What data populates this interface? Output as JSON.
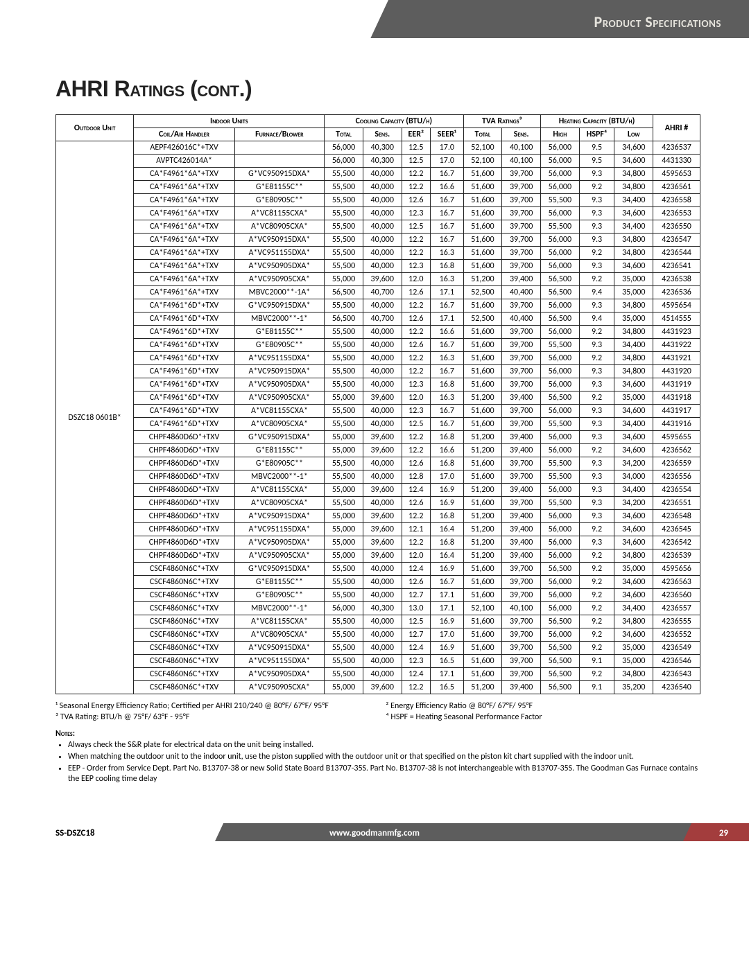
{
  "header": {
    "title": "Product Specifications"
  },
  "heading": "AHRI Ratings (cont.)",
  "columns": {
    "outdoor_unit": "Outdoor Unit",
    "indoor_units": "Indoor Units",
    "coil": "Coil/Air Handler",
    "furnace": "Furnace/Blower",
    "cooling": "Cooling Capacity (BTU/h)",
    "total": "Total",
    "sens": "Sens.",
    "eer": "EER²",
    "seer": "SEER¹",
    "tva": "TVA Ratings³",
    "heating": "Heating Capacity (BTU/h)",
    "high": "High",
    "hspf": "HSPF⁴",
    "low": "Low",
    "ahri": "AHRI #"
  },
  "outdoor_unit": "DSZC18 0601B*",
  "rows": [
    {
      "coil": "AEPF426016C*+TXV",
      "furnace": "",
      "ct": "56,000",
      "cs": "40,300",
      "eer": "12.5",
      "seer": "17.0",
      "tt": "52,100",
      "ts": "40,100",
      "hh": "56,000",
      "hspf": "9.5",
      "hl": "34,600",
      "ahri": "4236537"
    },
    {
      "coil": "AVPTC426014A*",
      "furnace": "",
      "ct": "56,000",
      "cs": "40,300",
      "eer": "12.5",
      "seer": "17.0",
      "tt": "52,100",
      "ts": "40,100",
      "hh": "56,000",
      "hspf": "9.5",
      "hl": "34,600",
      "ahri": "4431330"
    },
    {
      "coil": "CA*F4961*6A*+TXV",
      "furnace": "G*VC950915DXA*",
      "ct": "55,500",
      "cs": "40,000",
      "eer": "12.2",
      "seer": "16.7",
      "tt": "51,600",
      "ts": "39,700",
      "hh": "56,000",
      "hspf": "9.3",
      "hl": "34,800",
      "ahri": "4595653"
    },
    {
      "coil": "CA*F4961*6A*+TXV",
      "furnace": "G*E81155C**",
      "ct": "55,500",
      "cs": "40,000",
      "eer": "12.2",
      "seer": "16.6",
      "tt": "51,600",
      "ts": "39,700",
      "hh": "56,000",
      "hspf": "9.2",
      "hl": "34,800",
      "ahri": "4236561"
    },
    {
      "coil": "CA*F4961*6A*+TXV",
      "furnace": "G*E80905C**",
      "ct": "55,500",
      "cs": "40,000",
      "eer": "12.6",
      "seer": "16.7",
      "tt": "51,600",
      "ts": "39,700",
      "hh": "55,500",
      "hspf": "9.3",
      "hl": "34,400",
      "ahri": "4236558"
    },
    {
      "coil": "CA*F4961*6A*+TXV",
      "furnace": "A*VC81155CXA*",
      "ct": "55,500",
      "cs": "40,000",
      "eer": "12.3",
      "seer": "16.7",
      "tt": "51,600",
      "ts": "39,700",
      "hh": "56,000",
      "hspf": "9.3",
      "hl": "34,600",
      "ahri": "4236553"
    },
    {
      "coil": "CA*F4961*6A*+TXV",
      "furnace": "A*VC80905CXA*",
      "ct": "55,500",
      "cs": "40,000",
      "eer": "12.5",
      "seer": "16.7",
      "tt": "51,600",
      "ts": "39,700",
      "hh": "55,500",
      "hspf": "9.3",
      "hl": "34,400",
      "ahri": "4236550"
    },
    {
      "coil": "CA*F4961*6A*+TXV",
      "furnace": "A*VC950915DXA*",
      "ct": "55,500",
      "cs": "40,000",
      "eer": "12.2",
      "seer": "16.7",
      "tt": "51,600",
      "ts": "39,700",
      "hh": "56,000",
      "hspf": "9.3",
      "hl": "34,800",
      "ahri": "4236547"
    },
    {
      "coil": "CA*F4961*6A*+TXV",
      "furnace": "A*VC951155DXA*",
      "ct": "55,500",
      "cs": "40,000",
      "eer": "12.2",
      "seer": "16.3",
      "tt": "51,600",
      "ts": "39,700",
      "hh": "56,000",
      "hspf": "9.2",
      "hl": "34,800",
      "ahri": "4236544"
    },
    {
      "coil": "CA*F4961*6A*+TXV",
      "furnace": "A*VC950905DXA*",
      "ct": "55,500",
      "cs": "40,000",
      "eer": "12.3",
      "seer": "16.8",
      "tt": "51,600",
      "ts": "39,700",
      "hh": "56,000",
      "hspf": "9.3",
      "hl": "34,600",
      "ahri": "4236541"
    },
    {
      "coil": "CA*F4961*6A*+TXV",
      "furnace": "A*VC950905CXA*",
      "ct": "55,000",
      "cs": "39,600",
      "eer": "12.0",
      "seer": "16.3",
      "tt": "51,200",
      "ts": "39,400",
      "hh": "56,500",
      "hspf": "9.2",
      "hl": "35,000",
      "ahri": "4236538"
    },
    {
      "coil": "CA*F4961*6A*+TXV",
      "furnace": "MBVC2000**-1A*",
      "ct": "56,500",
      "cs": "40,700",
      "eer": "12.6",
      "seer": "17.1",
      "tt": "52,500",
      "ts": "40,400",
      "hh": "56,500",
      "hspf": "9.4",
      "hl": "35,000",
      "ahri": "4236536"
    },
    {
      "coil": "CA*F4961*6D*+TXV",
      "furnace": "G*VC950915DXA*",
      "ct": "55,500",
      "cs": "40,000",
      "eer": "12.2",
      "seer": "16.7",
      "tt": "51,600",
      "ts": "39,700",
      "hh": "56,000",
      "hspf": "9.3",
      "hl": "34,800",
      "ahri": "4595654"
    },
    {
      "coil": "CA*F4961*6D*+TXV",
      "furnace": "MBVC2000**-1*",
      "ct": "56,500",
      "cs": "40,700",
      "eer": "12.6",
      "seer": "17.1",
      "tt": "52,500",
      "ts": "40,400",
      "hh": "56,500",
      "hspf": "9.4",
      "hl": "35,000",
      "ahri": "4514555"
    },
    {
      "coil": "CA*F4961*6D*+TXV",
      "furnace": "G*E81155C**",
      "ct": "55,500",
      "cs": "40,000",
      "eer": "12.2",
      "seer": "16.6",
      "tt": "51,600",
      "ts": "39,700",
      "hh": "56,000",
      "hspf": "9.2",
      "hl": "34,800",
      "ahri": "4431923"
    },
    {
      "coil": "CA*F4961*6D*+TXV",
      "furnace": "G*E80905C**",
      "ct": "55,500",
      "cs": "40,000",
      "eer": "12.6",
      "seer": "16.7",
      "tt": "51,600",
      "ts": "39,700",
      "hh": "55,500",
      "hspf": "9.3",
      "hl": "34,400",
      "ahri": "4431922"
    },
    {
      "coil": "CA*F4961*6D*+TXV",
      "furnace": "A*VC951155DXA*",
      "ct": "55,500",
      "cs": "40,000",
      "eer": "12.2",
      "seer": "16.3",
      "tt": "51,600",
      "ts": "39,700",
      "hh": "56,000",
      "hspf": "9.2",
      "hl": "34,800",
      "ahri": "4431921"
    },
    {
      "coil": "CA*F4961*6D*+TXV",
      "furnace": "A*VC950915DXA*",
      "ct": "55,500",
      "cs": "40,000",
      "eer": "12.2",
      "seer": "16.7",
      "tt": "51,600",
      "ts": "39,700",
      "hh": "56,000",
      "hspf": "9.3",
      "hl": "34,800",
      "ahri": "4431920"
    },
    {
      "coil": "CA*F4961*6D*+TXV",
      "furnace": "A*VC950905DXA*",
      "ct": "55,500",
      "cs": "40,000",
      "eer": "12.3",
      "seer": "16.8",
      "tt": "51,600",
      "ts": "39,700",
      "hh": "56,000",
      "hspf": "9.3",
      "hl": "34,600",
      "ahri": "4431919"
    },
    {
      "coil": "CA*F4961*6D*+TXV",
      "furnace": "A*VC950905CXA*",
      "ct": "55,000",
      "cs": "39,600",
      "eer": "12.0",
      "seer": "16.3",
      "tt": "51,200",
      "ts": "39,400",
      "hh": "56,500",
      "hspf": "9.2",
      "hl": "35,000",
      "ahri": "4431918"
    },
    {
      "coil": "CA*F4961*6D*+TXV",
      "furnace": "A*VC81155CXA*",
      "ct": "55,500",
      "cs": "40,000",
      "eer": "12.3",
      "seer": "16.7",
      "tt": "51,600",
      "ts": "39,700",
      "hh": "56,000",
      "hspf": "9.3",
      "hl": "34,600",
      "ahri": "4431917"
    },
    {
      "coil": "CA*F4961*6D*+TXV",
      "furnace": "A*VC80905CXA*",
      "ct": "55,500",
      "cs": "40,000",
      "eer": "12.5",
      "seer": "16.7",
      "tt": "51,600",
      "ts": "39,700",
      "hh": "55,500",
      "hspf": "9.3",
      "hl": "34,400",
      "ahri": "4431916"
    },
    {
      "coil": "CHPF4860D6D*+TXV",
      "furnace": "G*VC950915DXA*",
      "ct": "55,000",
      "cs": "39,600",
      "eer": "12.2",
      "seer": "16.8",
      "tt": "51,200",
      "ts": "39,400",
      "hh": "56,000",
      "hspf": "9.3",
      "hl": "34,600",
      "ahri": "4595655"
    },
    {
      "coil": "CHPF4860D6D*+TXV",
      "furnace": "G*E81155C**",
      "ct": "55,000",
      "cs": "39,600",
      "eer": "12.2",
      "seer": "16.6",
      "tt": "51,200",
      "ts": "39,400",
      "hh": "56,000",
      "hspf": "9.2",
      "hl": "34,600",
      "ahri": "4236562"
    },
    {
      "coil": "CHPF4860D6D*+TXV",
      "furnace": "G*E80905C**",
      "ct": "55,500",
      "cs": "40,000",
      "eer": "12.6",
      "seer": "16.8",
      "tt": "51,600",
      "ts": "39,700",
      "hh": "55,500",
      "hspf": "9.3",
      "hl": "34,200",
      "ahri": "4236559"
    },
    {
      "coil": "CHPF4860D6D*+TXV",
      "furnace": "MBVC2000**-1*",
      "ct": "55,500",
      "cs": "40,000",
      "eer": "12.8",
      "seer": "17.0",
      "tt": "51,600",
      "ts": "39,700",
      "hh": "55,500",
      "hspf": "9.3",
      "hl": "34,000",
      "ahri": "4236556"
    },
    {
      "coil": "CHPF4860D6D*+TXV",
      "furnace": "A*VC81155CXA*",
      "ct": "55,000",
      "cs": "39,600",
      "eer": "12.4",
      "seer": "16.9",
      "tt": "51,200",
      "ts": "39,400",
      "hh": "56,000",
      "hspf": "9.3",
      "hl": "34,400",
      "ahri": "4236554"
    },
    {
      "coil": "CHPF4860D6D*+TXV",
      "furnace": "A*VC80905CXA*",
      "ct": "55,500",
      "cs": "40,000",
      "eer": "12.6",
      "seer": "16.9",
      "tt": "51,600",
      "ts": "39,700",
      "hh": "55,500",
      "hspf": "9.3",
      "hl": "34,200",
      "ahri": "4236551"
    },
    {
      "coil": "CHPF4860D6D*+TXV",
      "furnace": "A*VC950915DXA*",
      "ct": "55,000",
      "cs": "39,600",
      "eer": "12.2",
      "seer": "16.8",
      "tt": "51,200",
      "ts": "39,400",
      "hh": "56,000",
      "hspf": "9.3",
      "hl": "34,600",
      "ahri": "4236548"
    },
    {
      "coil": "CHPF4860D6D*+TXV",
      "furnace": "A*VC951155DXA*",
      "ct": "55,000",
      "cs": "39,600",
      "eer": "12.1",
      "seer": "16.4",
      "tt": "51,200",
      "ts": "39,400",
      "hh": "56,000",
      "hspf": "9.2",
      "hl": "34,600",
      "ahri": "4236545"
    },
    {
      "coil": "CHPF4860D6D*+TXV",
      "furnace": "A*VC950905DXA*",
      "ct": "55,000",
      "cs": "39,600",
      "eer": "12.2",
      "seer": "16.8",
      "tt": "51,200",
      "ts": "39,400",
      "hh": "56,000",
      "hspf": "9.3",
      "hl": "34,600",
      "ahri": "4236542"
    },
    {
      "coil": "CHPF4860D6D*+TXV",
      "furnace": "A*VC950905CXA*",
      "ct": "55,000",
      "cs": "39,600",
      "eer": "12.0",
      "seer": "16.4",
      "tt": "51,200",
      "ts": "39,400",
      "hh": "56,000",
      "hspf": "9.2",
      "hl": "34,800",
      "ahri": "4236539"
    },
    {
      "coil": "CSCF4860N6C*+TXV",
      "furnace": "G*VC950915DXA*",
      "ct": "55,500",
      "cs": "40,000",
      "eer": "12.4",
      "seer": "16.9",
      "tt": "51,600",
      "ts": "39,700",
      "hh": "56,500",
      "hspf": "9.2",
      "hl": "35,000",
      "ahri": "4595656"
    },
    {
      "coil": "CSCF4860N6C*+TXV",
      "furnace": "G*E81155C**",
      "ct": "55,500",
      "cs": "40,000",
      "eer": "12.6",
      "seer": "16.7",
      "tt": "51,600",
      "ts": "39,700",
      "hh": "56,000",
      "hspf": "9.2",
      "hl": "34,600",
      "ahri": "4236563"
    },
    {
      "coil": "CSCF4860N6C*+TXV",
      "furnace": "G*E80905C**",
      "ct": "55,500",
      "cs": "40,000",
      "eer": "12.7",
      "seer": "17.1",
      "tt": "51,600",
      "ts": "39,700",
      "hh": "56,000",
      "hspf": "9.2",
      "hl": "34,600",
      "ahri": "4236560"
    },
    {
      "coil": "CSCF4860N6C*+TXV",
      "furnace": "MBVC2000**-1*",
      "ct": "56,000",
      "cs": "40,300",
      "eer": "13.0",
      "seer": "17.1",
      "tt": "52,100",
      "ts": "40,100",
      "hh": "56,000",
      "hspf": "9.2",
      "hl": "34,400",
      "ahri": "4236557"
    },
    {
      "coil": "CSCF4860N6C*+TXV",
      "furnace": "A*VC81155CXA*",
      "ct": "55,500",
      "cs": "40,000",
      "eer": "12.5",
      "seer": "16.9",
      "tt": "51,600",
      "ts": "39,700",
      "hh": "56,500",
      "hspf": "9.2",
      "hl": "34,800",
      "ahri": "4236555"
    },
    {
      "coil": "CSCF4860N6C*+TXV",
      "furnace": "A*VC80905CXA*",
      "ct": "55,500",
      "cs": "40,000",
      "eer": "12.7",
      "seer": "17.0",
      "tt": "51,600",
      "ts": "39,700",
      "hh": "56,000",
      "hspf": "9.2",
      "hl": "34,600",
      "ahri": "4236552"
    },
    {
      "coil": "CSCF4860N6C*+TXV",
      "furnace": "A*VC950915DXA*",
      "ct": "55,500",
      "cs": "40,000",
      "eer": "12.4",
      "seer": "16.9",
      "tt": "51,600",
      "ts": "39,700",
      "hh": "56,500",
      "hspf": "9.2",
      "hl": "35,000",
      "ahri": "4236549"
    },
    {
      "coil": "CSCF4860N6C*+TXV",
      "furnace": "A*VC951155DXA*",
      "ct": "55,500",
      "cs": "40,000",
      "eer": "12.3",
      "seer": "16.5",
      "tt": "51,600",
      "ts": "39,700",
      "hh": "56,500",
      "hspf": "9.1",
      "hl": "35,000",
      "ahri": "4236546"
    },
    {
      "coil": "CSCF4860N6C*+TXV",
      "furnace": "A*VC950905DXA*",
      "ct": "55,500",
      "cs": "40,000",
      "eer": "12.4",
      "seer": "17.1",
      "tt": "51,600",
      "ts": "39,700",
      "hh": "56,500",
      "hspf": "9.2",
      "hl": "34,800",
      "ahri": "4236543"
    },
    {
      "coil": "CSCF4860N6C*+TXV",
      "furnace": "A*VC950905CXA*",
      "ct": "55,000",
      "cs": "39,600",
      "eer": "12.2",
      "seer": "16.5",
      "tt": "51,200",
      "ts": "39,400",
      "hh": "56,500",
      "hspf": "9.1",
      "hl": "35,200",
      "ahri": "4236540"
    }
  ],
  "legend": {
    "l1": "¹  Seasonal Energy Efficiency Ratio; Certified per AHRI 210/240 @ 80°F/ 67°F/ 95°F",
    "l2": "²  Energy Efficiency Ratio @ 80°F/ 67°F/ 95°F",
    "l3": "³  TVA Rating: BTU/h @ 75°F/ 63°F - 95°F",
    "l4": "⁴  HSPF = Heating Seasonal Performance Factor"
  },
  "notes_head": "Notes:",
  "notes": [
    "Always check the S&R plate for electrical data on the unit being installed.",
    "When matching the outdoor unit to the indoor unit, use the piston supplied with the outdoor unit or that specified on the piston kit chart supplied with the indoor unit.",
    "EEP - Order from Service Dept. Part No. B13707-38 or new Solid State Board B13707-35S. Part No. B13707-38 is not interchangeable with B13707-35S. The Goodman Gas Furnace contains the EEP cooling time delay"
  ],
  "footer": {
    "doc": "SS-DSZC18",
    "url": "www.goodmanmfg.com",
    "page": "29"
  },
  "style": {
    "header_bg": "#5d5d5d",
    "header_fg": "#e5e3dc",
    "footer_accent": "#a33d3d",
    "border": "#222",
    "font_size_table": 12,
    "font_size_heading": 32
  }
}
